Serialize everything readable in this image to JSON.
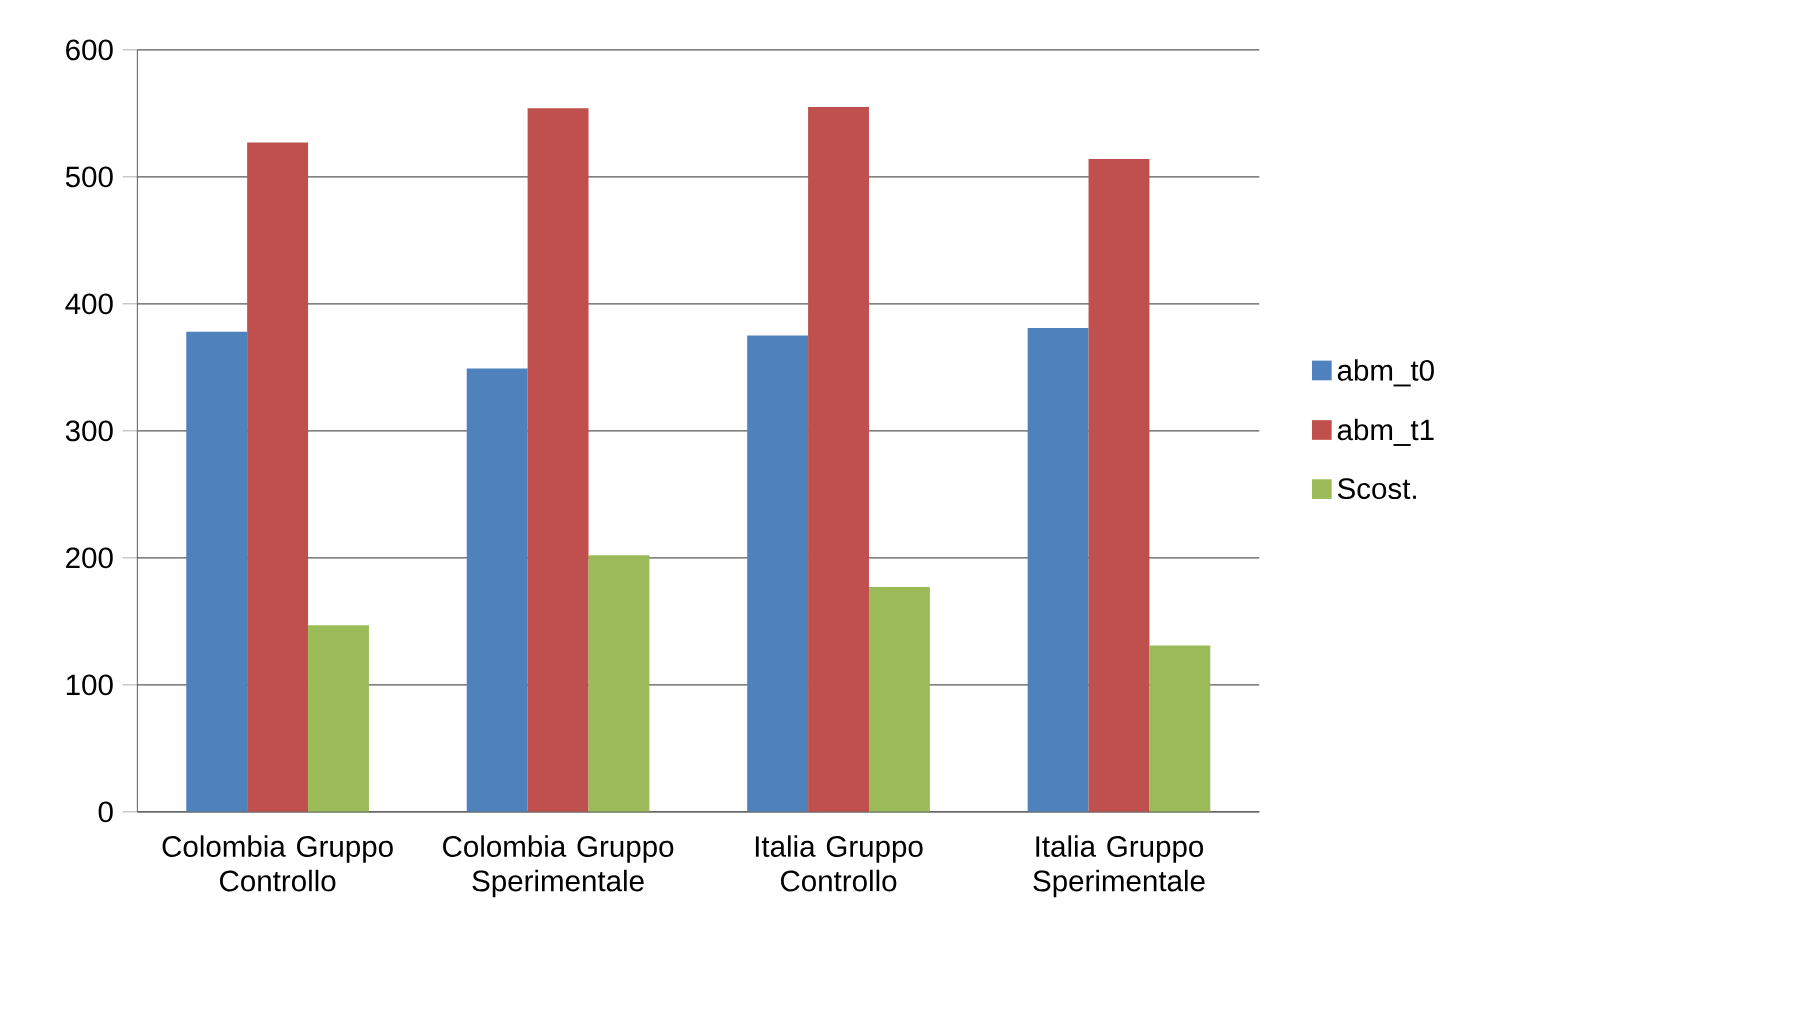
{
  "chart_data": {
    "type": "bar",
    "categories": [
      "Colombia Gruppo Controllo",
      "Colombia Gruppo Sperimentale",
      "Italia Gruppo Controllo",
      "Italia Gruppo Sperimentale"
    ],
    "series": [
      {
        "name": "abm_t0",
        "color": "#4f81bd",
        "values": [
          378,
          349,
          375,
          381
        ]
      },
      {
        "name": "abm_t1",
        "color": "#c0504d",
        "values": [
          527,
          554,
          555,
          514
        ]
      },
      {
        "name": "Scost.",
        "color": "#9bbb59",
        "values": [
          147,
          202,
          177,
          131
        ]
      }
    ],
    "ylim": [
      0,
      600
    ],
    "yticks": [
      0,
      100,
      200,
      300,
      400,
      500,
      600
    ],
    "grid": "y",
    "legend": "right"
  }
}
